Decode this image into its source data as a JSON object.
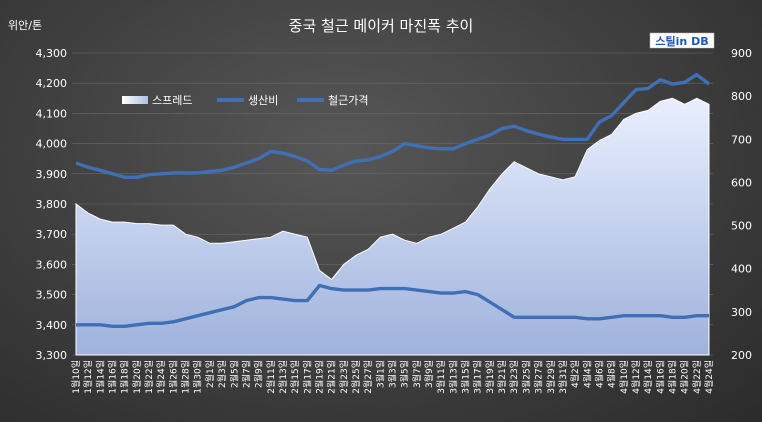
{
  "chart_data": {
    "type": "area+line",
    "title": "중국 철근 메이커 마진폭 추이",
    "ylabel_left": "위안/톤",
    "brand": "스틸in DB",
    "left_axis": {
      "ylim": [
        3300,
        4300
      ],
      "ticks": [
        "3,300",
        "3,400",
        "3,500",
        "3,600",
        "3,700",
        "3,800",
        "3,900",
        "4,000",
        "4,100",
        "4,200",
        "4,300"
      ]
    },
    "right_axis": {
      "ylim": [
        200,
        900
      ],
      "ticks": [
        "200",
        "300",
        "400",
        "500",
        "600",
        "700",
        "800",
        "900"
      ]
    },
    "x_labels": [
      "1월10일",
      "1월12일",
      "1월14일",
      "1월16일",
      "1월18일",
      "1월20일",
      "1월22일",
      "1월24일",
      "1월26일",
      "1월28일",
      "1월30일",
      "2월1일",
      "2월3일",
      "2월5일",
      "2월7일",
      "2월9일",
      "2월11일",
      "2월13일",
      "2월15일",
      "2월17일",
      "2월19일",
      "2월21일",
      "2월23일",
      "2월25일",
      "2월27일",
      "3월1일",
      "3월3일",
      "3월5일",
      "3월7일",
      "3월9일",
      "3월11일",
      "3월13일",
      "3월15일",
      "3월17일",
      "3월19일",
      "3월21일",
      "3월23일",
      "3월25일",
      "3월27일",
      "3월29일",
      "3월31일",
      "4월2일",
      "4월4일",
      "4월6일",
      "4월8일",
      "4월10일",
      "4월12일",
      "4월14일",
      "4월16일",
      "4월18일",
      "4월20일",
      "4월22일",
      "4월24일"
    ],
    "legend": [
      "스프레드",
      "생산비",
      "철근가격"
    ],
    "series": [
      {
        "name": "스프레드",
        "axis": "left",
        "kind": "area",
        "values": [
          3800,
          3770,
          3750,
          3740,
          3740,
          3735,
          3735,
          3730,
          3730,
          3700,
          3690,
          3670,
          3670,
          3675,
          3680,
          3685,
          3690,
          3710,
          3700,
          3690,
          3580,
          3550,
          3600,
          3630,
          3650,
          3690,
          3700,
          3680,
          3670,
          3690,
          3700,
          3720,
          3740,
          3790,
          3850,
          3900,
          3940,
          3920,
          3900,
          3890,
          3880,
          3890,
          3980,
          4010,
          4030,
          4080,
          4100,
          4110,
          4140,
          4150,
          4130,
          4150,
          4130
        ]
      },
      {
        "name": "생산비",
        "axis": "left",
        "kind": "line",
        "values": [
          3400,
          3400,
          3400,
          3395,
          3395,
          3400,
          3405,
          3405,
          3410,
          3420,
          3430,
          3440,
          3450,
          3460,
          3480,
          3490,
          3490,
          3485,
          3480,
          3480,
          3530,
          3520,
          3515,
          3515,
          3515,
          3520,
          3520,
          3520,
          3515,
          3510,
          3505,
          3505,
          3510,
          3500,
          3475,
          3450,
          3425,
          3425,
          3425,
          3425,
          3425,
          3425,
          3420,
          3420,
          3425,
          3430,
          3430,
          3430,
          3430,
          3425,
          3425,
          3430,
          3430
        ]
      },
      {
        "name": "철근가격",
        "axis": "right",
        "kind": "line",
        "values": [
          645,
          635,
          628,
          620,
          612,
          612,
          618,
          620,
          622,
          622,
          622,
          625,
          628,
          635,
          645,
          655,
          672,
          668,
          660,
          650,
          630,
          628,
          640,
          650,
          652,
          660,
          672,
          690,
          685,
          680,
          678,
          678,
          690,
          700,
          710,
          725,
          730,
          720,
          712,
          705,
          700,
          700,
          700,
          740,
          755,
          785,
          815,
          818,
          838,
          828,
          832,
          850,
          828
        ]
      }
    ]
  }
}
